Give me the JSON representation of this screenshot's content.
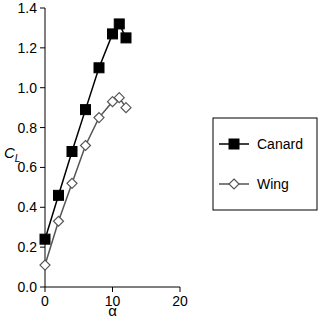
{
  "chart_data": {
    "type": "line",
    "x_label": "α",
    "y_label": "CL",
    "x": [
      0,
      2,
      4,
      6,
      8,
      10,
      11,
      12
    ],
    "series": [
      {
        "name": "Canard",
        "color": "#000000",
        "marker": "square",
        "line_style": "solid",
        "values": [
          0.24,
          0.46,
          0.68,
          0.89,
          1.1,
          1.27,
          1.32,
          1.25
        ]
      },
      {
        "name": "Wing",
        "color": "#555555",
        "marker": "diamond",
        "line_style": "solid",
        "values": [
          0.11,
          0.33,
          0.52,
          0.71,
          0.85,
          0.93,
          0.95,
          0.9
        ]
      }
    ],
    "xlim": [
      0,
      20
    ],
    "xticks": [
      0,
      10,
      20
    ],
    "ylim": [
      0,
      1.4
    ],
    "yticks": [
      {
        "value": 0,
        "label": "0.0"
      },
      0.2,
      0.4,
      0.6,
      0.8,
      {
        "value": 1,
        "label": "1.0"
      },
      1.2,
      1.4
    ],
    "grid": false,
    "legend": "right"
  }
}
